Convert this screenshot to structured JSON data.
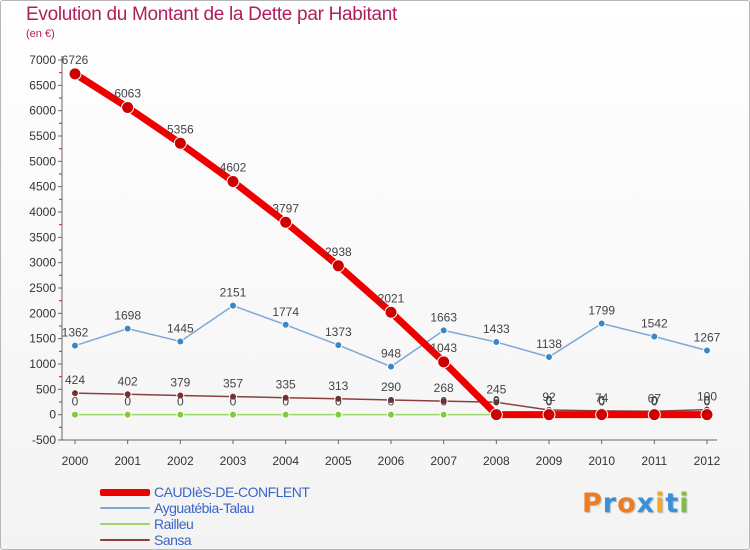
{
  "chart_data": {
    "type": "line",
    "title": "Evolution du Montant de la Dette par Habitant",
    "subtitle": "(en €)",
    "x": [
      "2000",
      "2001",
      "2002",
      "2003",
      "2004",
      "2005",
      "2006",
      "2007",
      "2008",
      "2009",
      "2010",
      "2011",
      "2012"
    ],
    "ylim": [
      -500,
      7000
    ],
    "yticks": [
      -500,
      0,
      500,
      1000,
      1500,
      2000,
      2500,
      3000,
      3500,
      4000,
      4500,
      5000,
      5500,
      6000,
      6500,
      7000
    ],
    "grid": false,
    "legend_position": "bottom-left",
    "series": [
      {
        "name": "CAUDIèS-DE-CONFLENT",
        "color": "#ee0000",
        "markerColor": "#cc0000",
        "width": 7,
        "markerRadius": 6,
        "values": [
          6726,
          6063,
          5356,
          4602,
          3797,
          2938,
          2021,
          1043,
          0,
          0,
          0,
          0,
          0
        ],
        "labels": [
          "6726",
          "6063",
          "5356",
          "4602",
          "3797",
          "2938",
          "2021",
          "1043",
          "0",
          "0",
          "0",
          "0",
          "0"
        ]
      },
      {
        "name": "Ayguatébia-Talau",
        "color": "#7ea7d8",
        "markerColor": "#3d86c6",
        "width": 1.5,
        "markerRadius": 3.5,
        "values": [
          1362,
          1698,
          1445,
          2151,
          1774,
          1373,
          948,
          1663,
          1433,
          1138,
          1799,
          1542,
          1267
        ],
        "labels": [
          "1362",
          "1698",
          "1445",
          "2151",
          "1774",
          "1373",
          "948",
          "1663",
          "1433",
          "1138",
          "1799",
          "1542",
          "1267"
        ]
      },
      {
        "name": "Railleu",
        "color": "#9cd66b",
        "markerColor": "#7fcc3d",
        "width": 1.5,
        "markerRadius": 3.5,
        "values": [
          0,
          0,
          0,
          0,
          0,
          0,
          0,
          0,
          0,
          0,
          0,
          0,
          0
        ],
        "labels": [
          "0",
          "0",
          "0",
          "0",
          "0",
          "0",
          "0",
          "0",
          "0",
          "0",
          "0",
          "0",
          "0"
        ]
      },
      {
        "name": "Sansa",
        "color": "#8a4040",
        "markerColor": "#7a2f2f",
        "width": 1.5,
        "markerRadius": 3.5,
        "values": [
          424,
          402,
          379,
          357,
          335,
          313,
          290,
          268,
          245,
          92,
          74,
          67,
          100
        ],
        "labels": [
          "424",
          "402",
          "379",
          "357",
          "335",
          "313",
          "290",
          "268",
          "245",
          "92",
          "74",
          "67",
          "100"
        ]
      }
    ]
  },
  "logo": {
    "letters": [
      "P",
      "r",
      "o",
      "x",
      "i",
      "t",
      "i"
    ],
    "colors": [
      "#f07c22",
      "#3a8fd6",
      "#f07c22",
      "#3a8fd6",
      "#f5a623",
      "#3a8fd6",
      "#7fbf3f"
    ]
  }
}
